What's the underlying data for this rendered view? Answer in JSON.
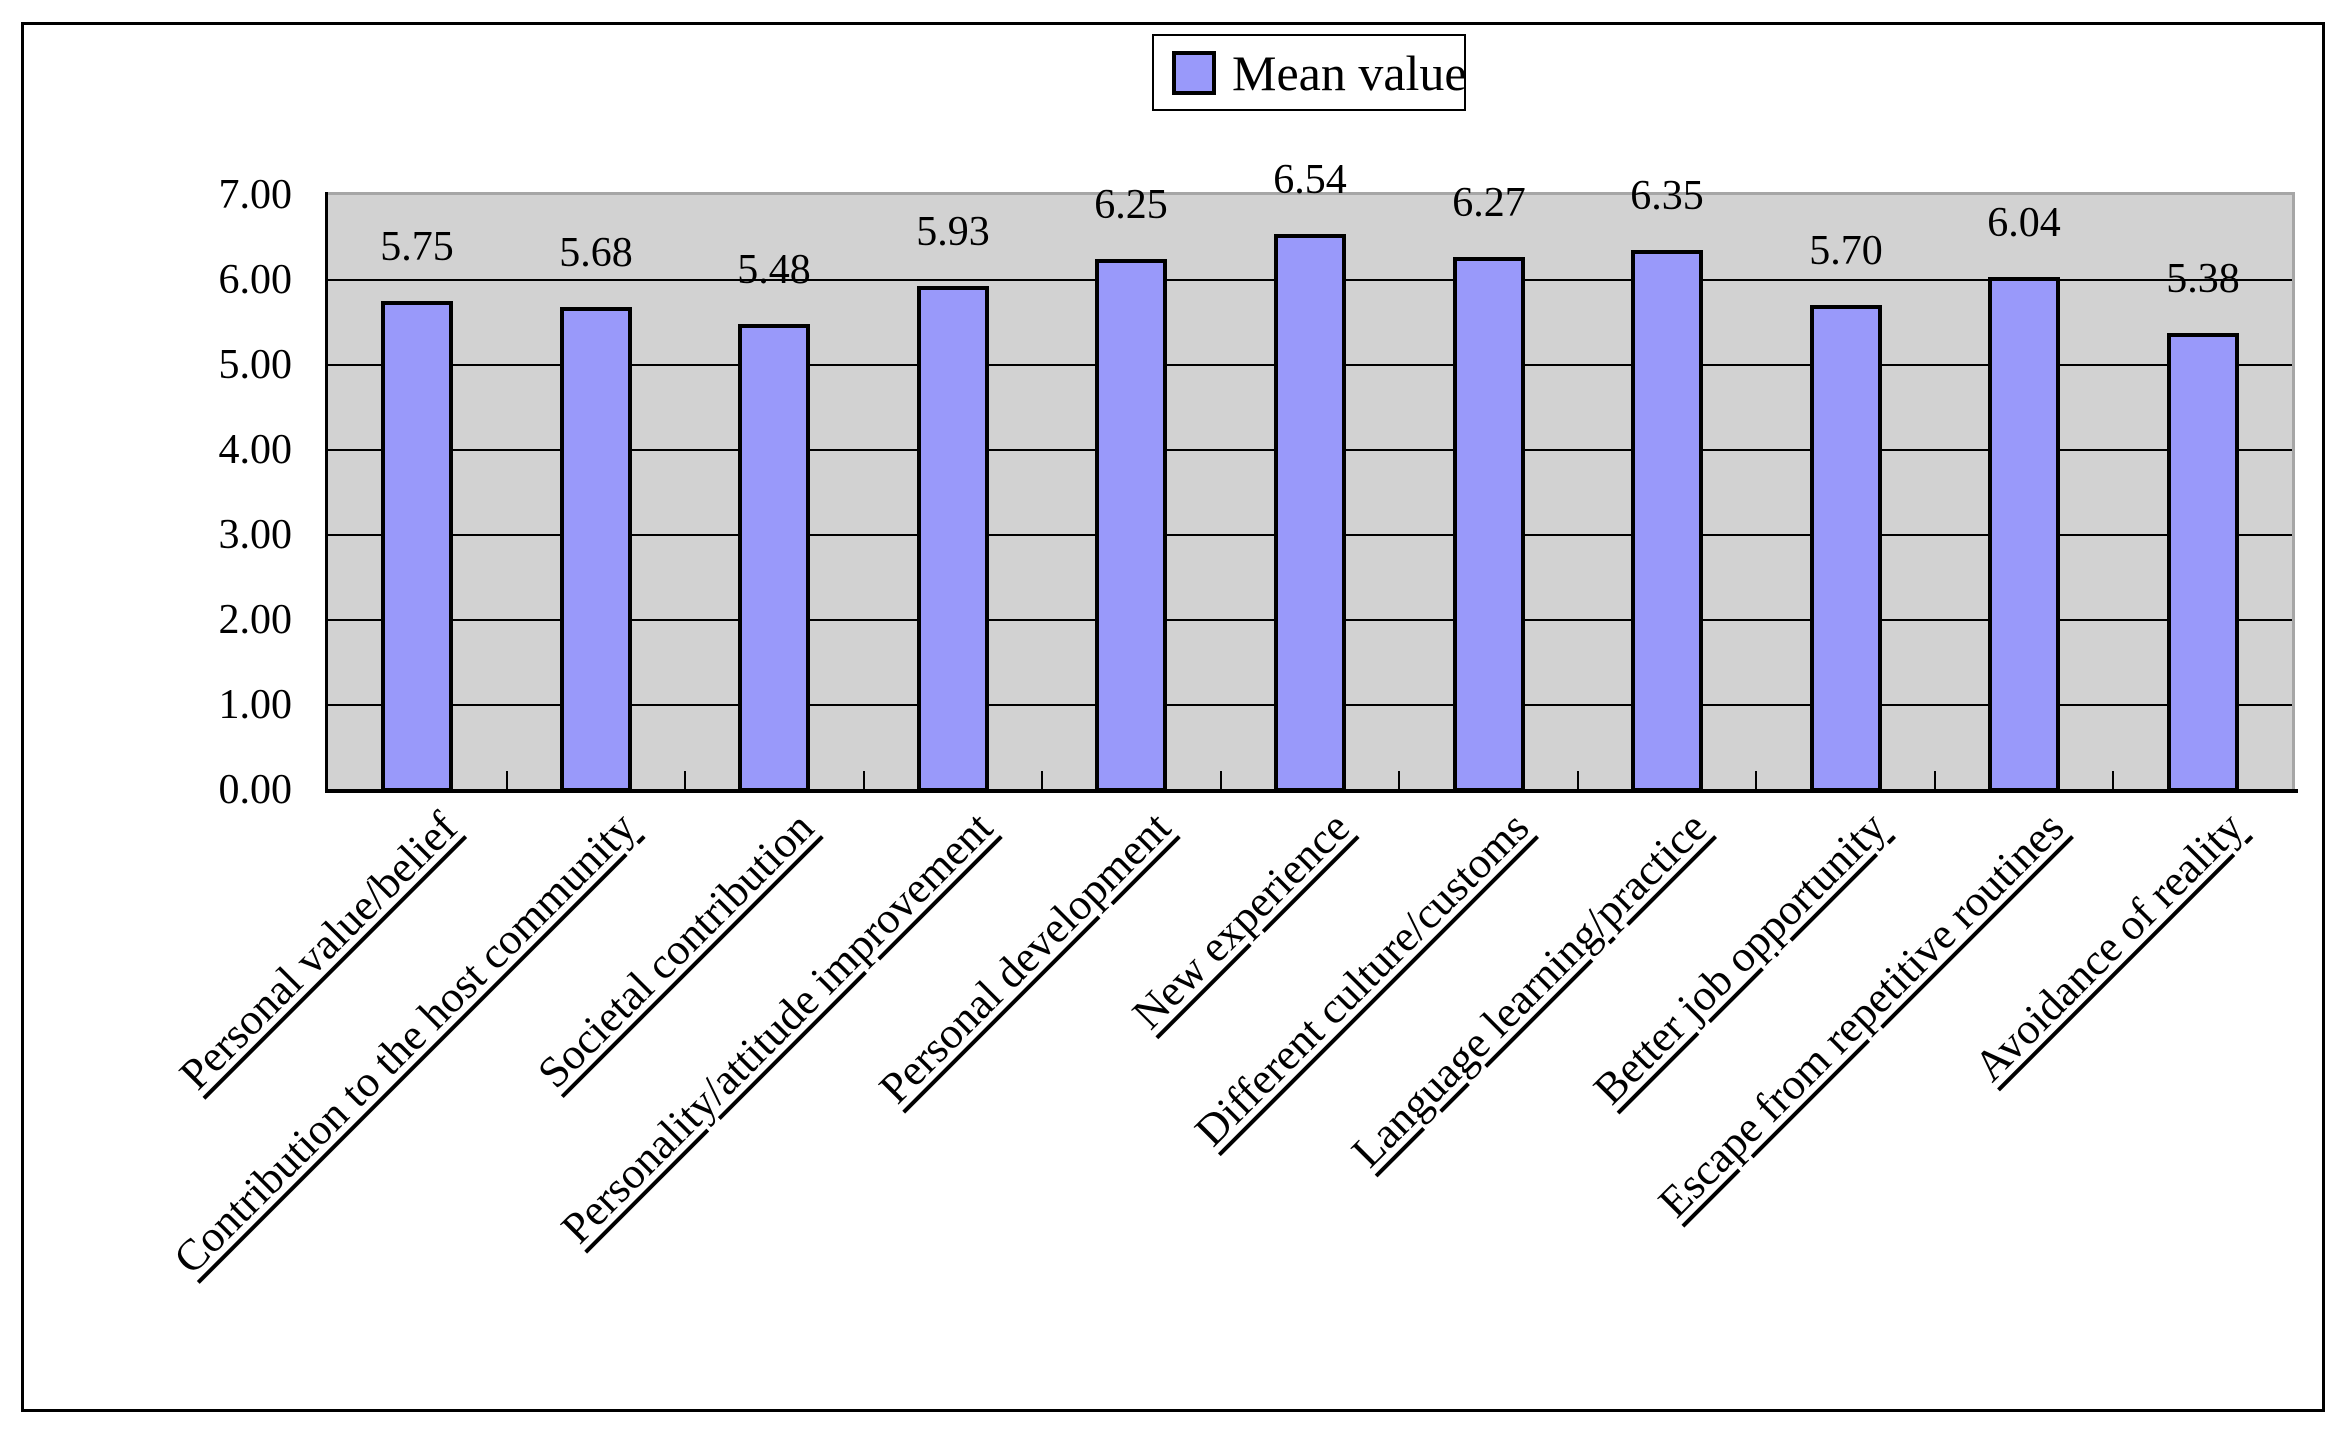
{
  "legend": {
    "label": "Mean value",
    "position": "top-center"
  },
  "colors": {
    "bar_fill": "#9999FA",
    "bar_border": "#000000",
    "plot_background": "#D2D2D2",
    "plot_border": "#A6A6A6",
    "gridline": "#000000",
    "axis": "#000000",
    "chart_border": "#000000",
    "background": "#FFFFFF",
    "text": "#000000"
  },
  "chart_data": {
    "type": "bar",
    "title": "",
    "xlabel": "",
    "ylabel": "",
    "categories": [
      "Personal value/belief",
      "Contribution to the host community",
      "Societal contribution",
      "Personality/attitude improvement",
      "Personal development",
      "New experience",
      "Different culture/customs",
      "Language learning/practice",
      "Better job opportunity",
      "Escape from repetitive routines",
      "Avoidance of reality"
    ],
    "series": [
      {
        "name": "Mean value",
        "values": [
          5.75,
          5.68,
          5.48,
          5.93,
          6.25,
          6.54,
          6.27,
          6.35,
          5.7,
          6.04,
          5.38
        ]
      }
    ],
    "data_labels": [
      "5.75",
      "5.68",
      "5.48",
      "5.93",
      "6.25",
      "6.54",
      "6.27",
      "6.35",
      "5.70",
      "6.04",
      "5.38"
    ],
    "ylim": [
      0,
      7
    ],
    "ytick_step": 1.0,
    "ytick_labels": [
      "0.00",
      "1.00",
      "2.00",
      "3.00",
      "4.00",
      "5.00",
      "6.00",
      "7.00"
    ],
    "grid": "horizontal-major",
    "legend_position": "top-center",
    "plot_area_shaded": true,
    "category_label_rotation_deg": 45,
    "category_labels_underlined": true
  }
}
